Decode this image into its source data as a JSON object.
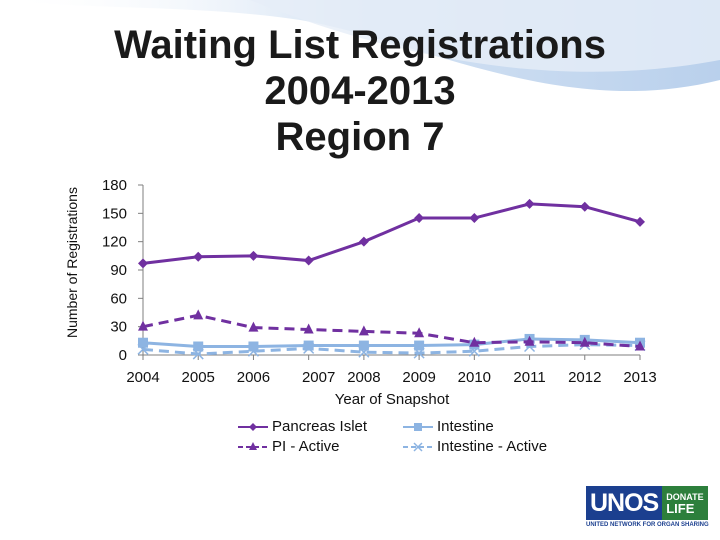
{
  "title_lines": [
    "Waiting List Registrations",
    "2004-2013",
    "Region 7"
  ],
  "colors": {
    "purple": "#7030a0",
    "blue": "#8db4e2",
    "background_wave": "#dbe7f5"
  },
  "logo": {
    "brand": "UNOS",
    "badge_top": "DONATE",
    "badge_bottom": "LIFE",
    "subtitle": "UNITED NETWORK FOR ORGAN SHARING",
    "mark": "®"
  },
  "chart_data": {
    "type": "line",
    "title": "Waiting List Registrations 2004-2013 Region 7",
    "xlabel": "Year of Snapshot",
    "ylabel": "Number of Registrations",
    "ylim": [
      0,
      180
    ],
    "yticks": [
      "0",
      "30",
      "60",
      "90",
      "120",
      "150",
      "180"
    ],
    "categories": [
      "2004",
      "2005",
      "2006",
      "2007",
      "2008",
      "2009",
      "2010",
      "2011",
      "2012",
      "2013"
    ],
    "grid": false,
    "legend_position": "bottom",
    "series": [
      {
        "name": "Pancreas Islet",
        "color": "#7030a0",
        "marker": "diamond",
        "dash": "solid",
        "values": [
          97,
          104,
          105,
          100,
          120,
          145,
          145,
          160,
          157,
          141
        ]
      },
      {
        "name": "Intestine",
        "color": "#8db4e2",
        "marker": "square",
        "dash": "solid",
        "values": [
          13,
          9,
          9,
          10,
          10,
          10,
          11,
          17,
          16,
          13
        ]
      },
      {
        "name": "PI - Active",
        "color": "#7030a0",
        "marker": "triangle",
        "dash": "dashed",
        "values": [
          30,
          42,
          29,
          27,
          25,
          23,
          13,
          14,
          13,
          9
        ]
      },
      {
        "name": "Intestine - Active",
        "color": "#8db4e2",
        "marker": "x",
        "dash": "dashed",
        "values": [
          6,
          1,
          4,
          7,
          3,
          2,
          4,
          9,
          11,
          10
        ]
      }
    ]
  }
}
